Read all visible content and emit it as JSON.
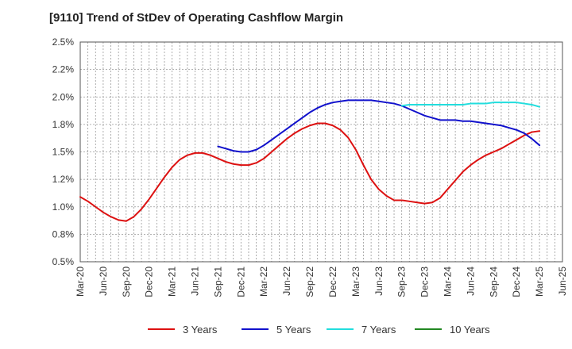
{
  "chart_data": {
    "type": "line",
    "title": "[9110]  Trend of StDev of Operating Cashflow Margin",
    "xlabel": "",
    "ylabel": "",
    "x_ticks": [
      "Mar-20",
      "Jun-20",
      "Sep-20",
      "Dec-20",
      "Mar-21",
      "Jun-21",
      "Sep-21",
      "Dec-21",
      "Mar-22",
      "Jun-22",
      "Sep-22",
      "Dec-22",
      "Mar-23",
      "Jun-23",
      "Sep-23",
      "Dec-23",
      "Mar-24",
      "Jun-24",
      "Sep-24",
      "Dec-24",
      "Mar-25",
      "Jun-25"
    ],
    "y_ticks": [
      "0.5%",
      "0.8%",
      "1.0%",
      "1.2%",
      "1.5%",
      "1.8%",
      "2.0%",
      "2.2%",
      "2.5%"
    ],
    "ylim": [
      0.5,
      2.5
    ],
    "grid": true,
    "legend_position": "bottom",
    "series": [
      {
        "name": "3 Years",
        "color": "#dd1111",
        "points": [
          [
            "Mar-20",
            1.09
          ],
          [
            "Apr-20",
            1.05
          ],
          [
            "May-20",
            1.0
          ],
          [
            "Jun-20",
            0.95
          ],
          [
            "Jul-20",
            0.91
          ],
          [
            "Aug-20",
            0.88
          ],
          [
            "Sep-20",
            0.87
          ],
          [
            "Oct-20",
            0.91
          ],
          [
            "Nov-20",
            0.98
          ],
          [
            "Dec-20",
            1.07
          ],
          [
            "Jan-21",
            1.17
          ],
          [
            "Feb-21",
            1.27
          ],
          [
            "Mar-21",
            1.36
          ],
          [
            "Apr-21",
            1.43
          ],
          [
            "May-21",
            1.47
          ],
          [
            "Jun-21",
            1.49
          ],
          [
            "Jul-21",
            1.49
          ],
          [
            "Aug-21",
            1.47
          ],
          [
            "Sep-21",
            1.44
          ],
          [
            "Oct-21",
            1.41
          ],
          [
            "Nov-21",
            1.39
          ],
          [
            "Dec-21",
            1.38
          ],
          [
            "Jan-22",
            1.38
          ],
          [
            "Feb-22",
            1.4
          ],
          [
            "Mar-22",
            1.44
          ],
          [
            "Apr-22",
            1.5
          ],
          [
            "May-22",
            1.56
          ],
          [
            "Jun-22",
            1.62
          ],
          [
            "Jul-22",
            1.67
          ],
          [
            "Aug-22",
            1.71
          ],
          [
            "Sep-22",
            1.74
          ],
          [
            "Oct-22",
            1.76
          ],
          [
            "Nov-22",
            1.76
          ],
          [
            "Dec-22",
            1.74
          ],
          [
            "Jan-23",
            1.7
          ],
          [
            "Feb-23",
            1.63
          ],
          [
            "Mar-23",
            1.52
          ],
          [
            "Apr-23",
            1.38
          ],
          [
            "May-23",
            1.25
          ],
          [
            "Jun-23",
            1.16
          ],
          [
            "Jul-23",
            1.1
          ],
          [
            "Aug-23",
            1.06
          ],
          [
            "Sep-23",
            1.06
          ],
          [
            "Oct-23",
            1.05
          ],
          [
            "Nov-23",
            1.04
          ],
          [
            "Dec-23",
            1.03
          ],
          [
            "Jan-24",
            1.04
          ],
          [
            "Feb-24",
            1.08
          ],
          [
            "Mar-24",
            1.16
          ],
          [
            "Apr-24",
            1.24
          ],
          [
            "May-24",
            1.32
          ],
          [
            "Jun-24",
            1.38
          ],
          [
            "Jul-24",
            1.43
          ],
          [
            "Aug-24",
            1.47
          ],
          [
            "Sep-24",
            1.5
          ],
          [
            "Oct-24",
            1.53
          ],
          [
            "Nov-24",
            1.57
          ],
          [
            "Dec-24",
            1.61
          ],
          [
            "Jan-25",
            1.65
          ],
          [
            "Feb-25",
            1.68
          ],
          [
            "Mar-25",
            1.69
          ]
        ]
      },
      {
        "name": "5 Years",
        "color": "#1111cc",
        "points": [
          [
            "Sep-21",
            1.55
          ],
          [
            "Oct-21",
            1.53
          ],
          [
            "Nov-21",
            1.51
          ],
          [
            "Dec-21",
            1.5
          ],
          [
            "Jan-22",
            1.5
          ],
          [
            "Feb-22",
            1.52
          ],
          [
            "Mar-22",
            1.56
          ],
          [
            "Apr-22",
            1.61
          ],
          [
            "May-22",
            1.66
          ],
          [
            "Jun-22",
            1.71
          ],
          [
            "Jul-22",
            1.76
          ],
          [
            "Aug-22",
            1.81
          ],
          [
            "Sep-22",
            1.86
          ],
          [
            "Oct-22",
            1.9
          ],
          [
            "Nov-22",
            1.93
          ],
          [
            "Dec-22",
            1.95
          ],
          [
            "Jan-23",
            1.96
          ],
          [
            "Feb-23",
            1.97
          ],
          [
            "Mar-23",
            1.97
          ],
          [
            "Apr-23",
            1.97
          ],
          [
            "May-23",
            1.97
          ],
          [
            "Jun-23",
            1.96
          ],
          [
            "Jul-23",
            1.95
          ],
          [
            "Aug-23",
            1.94
          ],
          [
            "Sep-23",
            1.92
          ],
          [
            "Oct-23",
            1.89
          ],
          [
            "Nov-23",
            1.86
          ],
          [
            "Dec-23",
            1.83
          ],
          [
            "Jan-24",
            1.81
          ],
          [
            "Feb-24",
            1.79
          ],
          [
            "Mar-24",
            1.79
          ],
          [
            "Apr-24",
            1.79
          ],
          [
            "May-24",
            1.78
          ],
          [
            "Jun-24",
            1.78
          ],
          [
            "Jul-24",
            1.77
          ],
          [
            "Aug-24",
            1.76
          ],
          [
            "Sep-24",
            1.75
          ],
          [
            "Oct-24",
            1.74
          ],
          [
            "Nov-24",
            1.72
          ],
          [
            "Dec-24",
            1.7
          ],
          [
            "Jan-25",
            1.67
          ],
          [
            "Feb-25",
            1.62
          ],
          [
            "Mar-25",
            1.56
          ]
        ]
      },
      {
        "name": "7 Years",
        "color": "#22dddd",
        "points": [
          [
            "Sep-23",
            1.92
          ],
          [
            "Oct-23",
            1.93
          ],
          [
            "Nov-23",
            1.93
          ],
          [
            "Dec-23",
            1.93
          ],
          [
            "Jan-24",
            1.93
          ],
          [
            "Feb-24",
            1.93
          ],
          [
            "Mar-24",
            1.93
          ],
          [
            "Apr-24",
            1.93
          ],
          [
            "May-24",
            1.93
          ],
          [
            "Jun-24",
            1.94
          ],
          [
            "Jul-24",
            1.94
          ],
          [
            "Aug-24",
            1.94
          ],
          [
            "Sep-24",
            1.95
          ],
          [
            "Oct-24",
            1.95
          ],
          [
            "Nov-24",
            1.95
          ],
          [
            "Dec-24",
            1.95
          ],
          [
            "Jan-25",
            1.94
          ],
          [
            "Feb-25",
            1.93
          ],
          [
            "Mar-25",
            1.91
          ]
        ]
      },
      {
        "name": "10 Years",
        "color": "#228822",
        "points": []
      }
    ]
  }
}
